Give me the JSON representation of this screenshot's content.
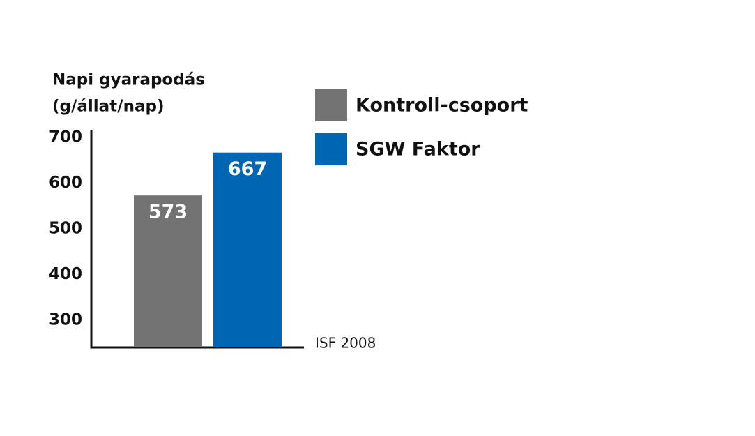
{
  "chart_data": {
    "type": "bar",
    "ylabel": [
      "Napi gyarapodás",
      "(g/állat/nap)"
    ],
    "source": "ISF 2008",
    "categories": [
      null
    ],
    "series": [
      {
        "name": "Kontroll-csoport",
        "color": "#737373",
        "values": [
          573
        ]
      },
      {
        "name": "SGW Faktor",
        "color": "#0066b3",
        "values": [
          667
        ]
      }
    ],
    "ylim": [
      240,
      717
    ],
    "yticks": [
      300,
      400,
      500,
      600,
      700
    ],
    "grid": false,
    "legend": "top-right"
  }
}
